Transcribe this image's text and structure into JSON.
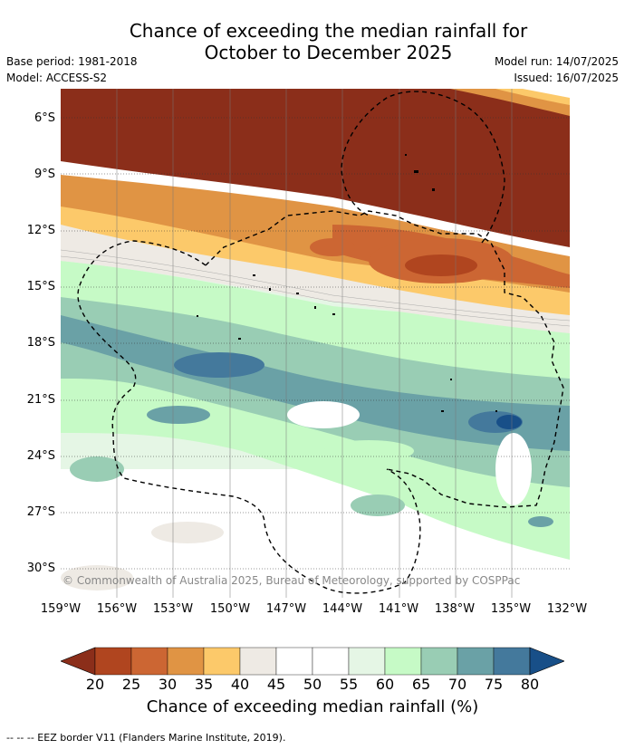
{
  "title_line1": "Chance of exceeding the median rainfall for",
  "title_line2": "October to December 2025",
  "base_period": "Base period: 1981-2018",
  "model": "Model: ACCESS-S2",
  "model_run": "Model run: 14/07/2025",
  "issued": "Issued: 16/07/2025",
  "copyright": "© Commonwealth of Australia 2025, Bureau of Meteorology, supported by COSPPac",
  "lat_labels": [
    "6°S",
    "9°S",
    "12°S",
    "15°S",
    "18°S",
    "21°S",
    "24°S",
    "27°S",
    "30°S"
  ],
  "lon_labels": [
    "159°W",
    "156°W",
    "153°W",
    "150°W",
    "147°W",
    "144°W",
    "141°W",
    "138°W",
    "135°W",
    "132°W"
  ],
  "colorbar": {
    "labels": [
      "20",
      "25",
      "30",
      "35",
      "40",
      "45",
      "50",
      "55",
      "60",
      "65",
      "70",
      "75",
      "80"
    ],
    "colors": [
      "#8b2e1a",
      "#b0451f",
      "#cc6633",
      "#e09444",
      "#fcc96a",
      "#eeeae4",
      "#ffffff",
      "#ffffff",
      "#e5f6e5",
      "#c6fac6",
      "#99cdb4",
      "#6aa1a6",
      "#44799c",
      "#184f88"
    ],
    "title": "Chance of exceeding median rainfall (%)"
  },
  "footer": "--  --  -- EEZ border V11 (Flanders Marine Institute, 2019)."
}
